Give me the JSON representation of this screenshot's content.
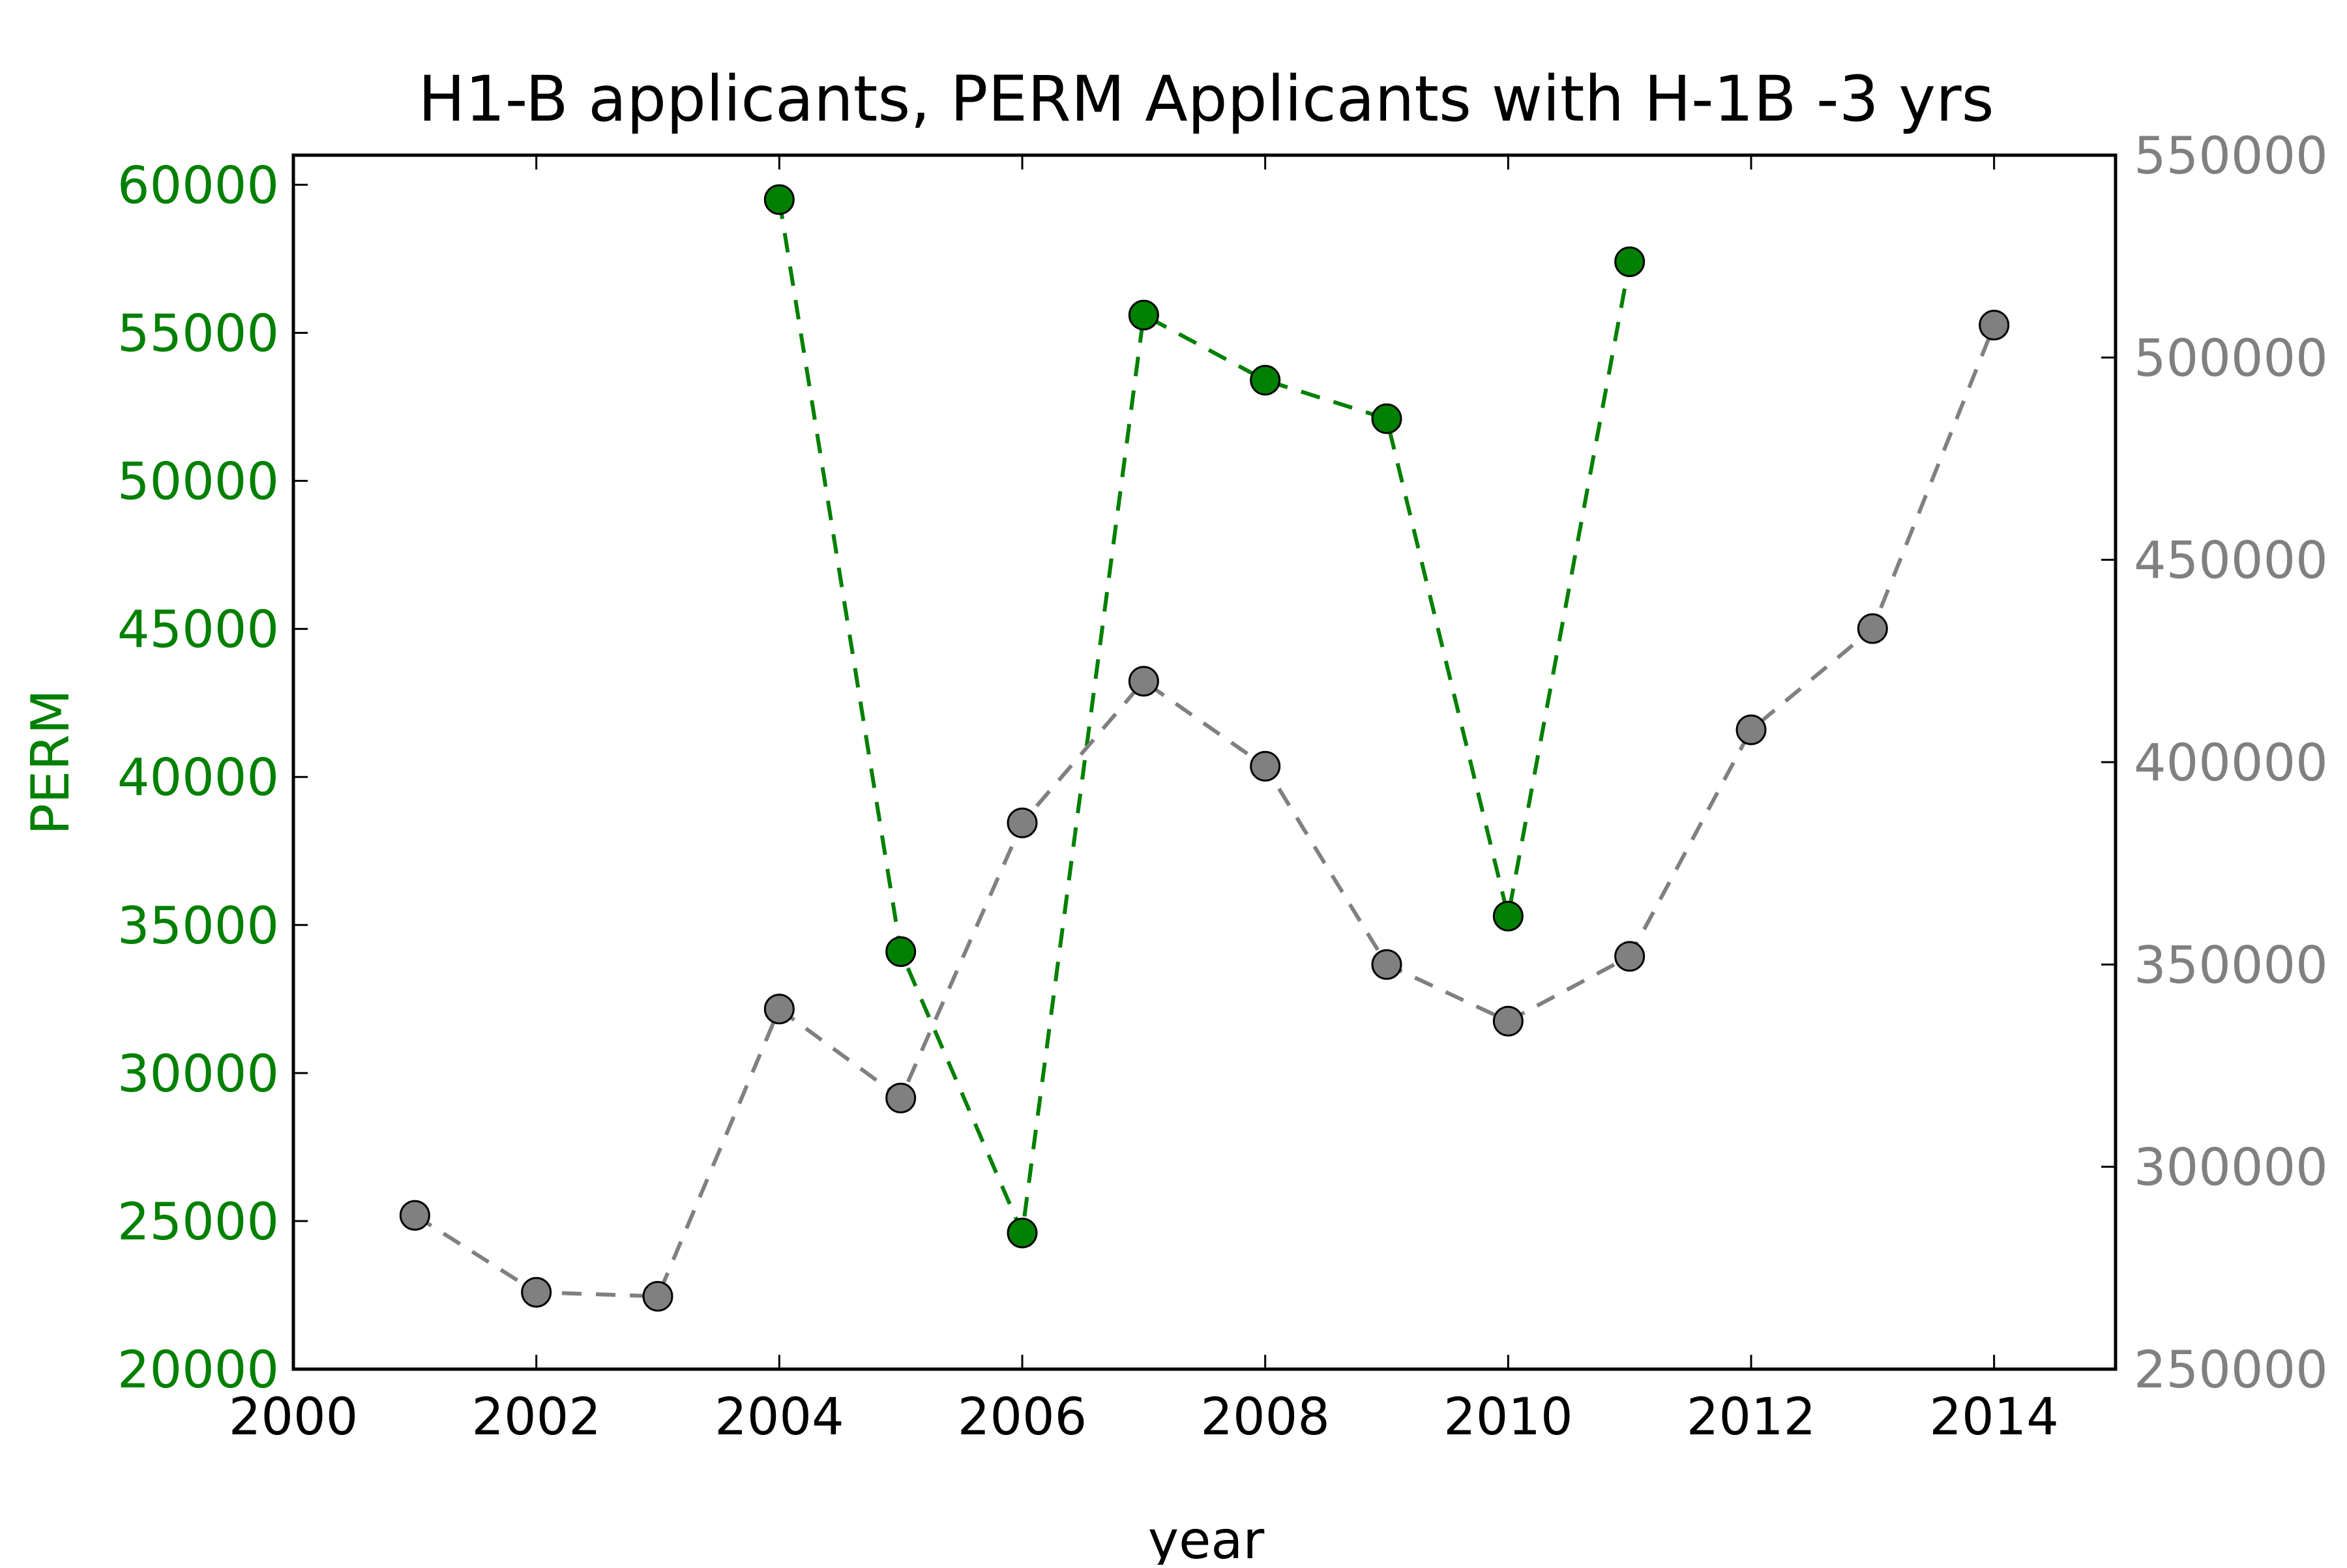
{
  "chart_data": {
    "type": "line",
    "title": "H1-B applicants, PERM Applicants with H-1B -3 yrs",
    "xlabel": "year",
    "ylabel_left": "PERM",
    "ylabel_right": "",
    "xlim": [
      2000,
      2015
    ],
    "ylim_left": [
      20000,
      61000
    ],
    "ylim_right": [
      250000,
      550000
    ],
    "x_ticks": [
      2000,
      2002,
      2004,
      2006,
      2008,
      2010,
      2012,
      2014
    ],
    "y_ticks_left": [
      20000,
      25000,
      30000,
      35000,
      40000,
      45000,
      50000,
      55000,
      60000
    ],
    "y_ticks_right": [
      250000,
      300000,
      350000,
      400000,
      450000,
      500000,
      550000
    ],
    "grid": false,
    "colors": {
      "perm": "#008000",
      "h1b": "#808080",
      "axis": "#000000",
      "marker_edge": "#000000"
    },
    "series": [
      {
        "axis": "left",
        "color": "#008000",
        "x": [
          2004,
          2005,
          2006,
          2007,
          2008,
          2009,
          2010,
          2011
        ],
        "values": [
          59500,
          34100,
          24600,
          55600,
          53400,
          52100,
          35300,
          57400
        ]
      },
      {
        "axis": "right",
        "color": "#808080",
        "x": [
          2001,
          2002,
          2003,
          2004,
          2005,
          2006,
          2007,
          2008,
          2009,
          2010,
          2011,
          2012,
          2013,
          2014
        ],
        "values": [
          288000,
          269000,
          268000,
          339000,
          317000,
          385000,
          420000,
          399000,
          350000,
          336000,
          352000,
          408000,
          433000,
          508000
        ]
      }
    ]
  }
}
